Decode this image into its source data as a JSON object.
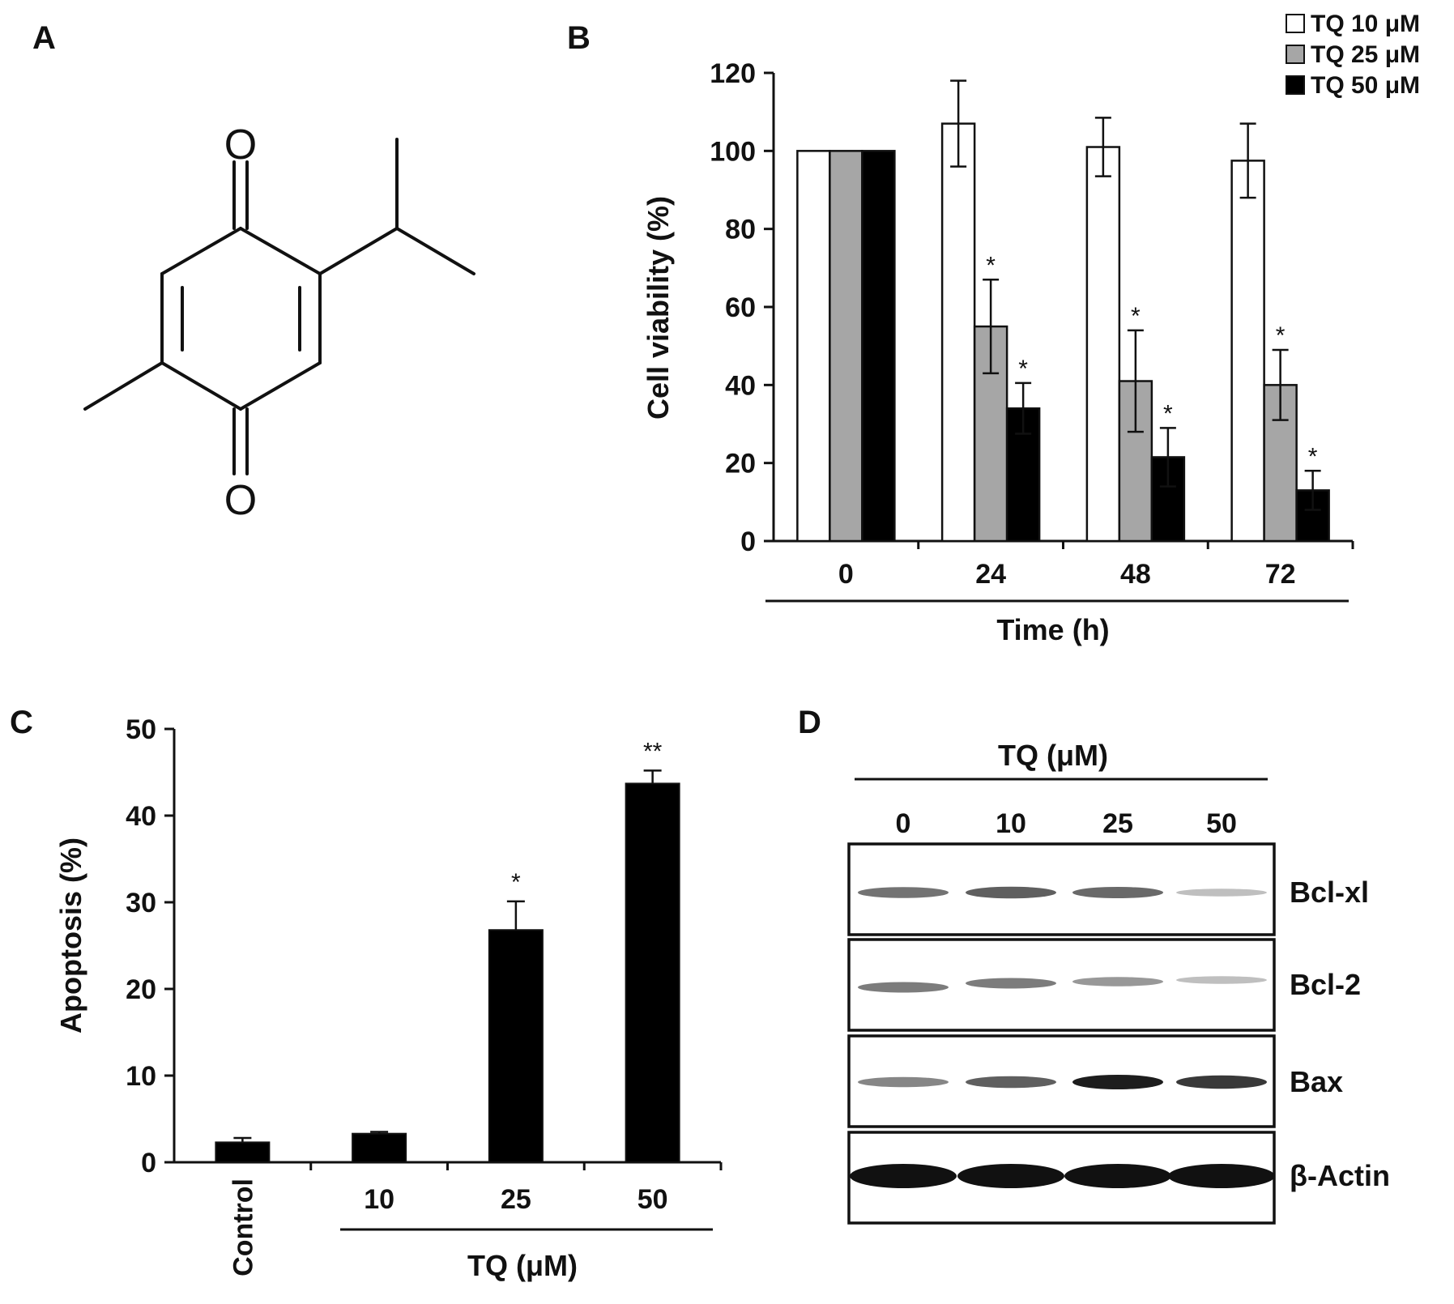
{
  "panels": [
    "A",
    "B",
    "C",
    "D"
  ],
  "molecule": {
    "atom_top": "O",
    "atom_bottom": "O"
  },
  "chart_data": [
    {
      "panel": "B",
      "type": "bar",
      "categories": [
        "0",
        "24",
        "48",
        "72"
      ],
      "series": [
        {
          "name": "TQ 10 μM",
          "values": [
            100,
            107,
            101,
            97.5
          ],
          "errors": [
            0,
            11,
            7.5,
            9.5
          ],
          "marks": [
            "",
            "",
            "",
            ""
          ],
          "color": "#ffffff"
        },
        {
          "name": "TQ 25 μM",
          "values": [
            100,
            55,
            41,
            40
          ],
          "errors": [
            0,
            12,
            13,
            9
          ],
          "marks": [
            "",
            "*",
            "*",
            "*"
          ],
          "color": "#a6a6a6"
        },
        {
          "name": "TQ 50 μM",
          "values": [
            100,
            34,
            21.5,
            13
          ],
          "errors": [
            0,
            6.5,
            7.5,
            5
          ],
          "marks": [
            "",
            "*",
            "*",
            "*"
          ],
          "color": "#000000"
        }
      ],
      "ylabel": "Cell viability (%)",
      "xlabel": "Time (h)",
      "ylim": [
        0,
        120
      ],
      "yticks": [
        "0",
        "20",
        "40",
        "60",
        "80",
        "100",
        "120"
      ],
      "legend": "top-right"
    },
    {
      "panel": "C",
      "type": "bar",
      "categories": [
        "Control",
        "10",
        "25",
        "50"
      ],
      "values": [
        2.3,
        3.3,
        26.8,
        43.7
      ],
      "errors": [
        0.5,
        0.2,
        3.3,
        1.5
      ],
      "marks": [
        "",
        "",
        "*",
        "**"
      ],
      "ylabel": "Apoptosis (%)",
      "xlabel": "TQ (μM)",
      "ylim": [
        0,
        50
      ],
      "yticks": [
        "0",
        "10",
        "20",
        "30",
        "40",
        "50"
      ],
      "color": "#000000"
    }
  ],
  "western_blot": {
    "header": "TQ (μM)",
    "lanes": [
      "0",
      "10",
      "25",
      "50"
    ],
    "rows": [
      {
        "label": "Bcl-xl",
        "intensity": [
          0.55,
          0.65,
          0.6,
          0.15
        ]
      },
      {
        "label": "Bcl-2",
        "intensity": [
          0.5,
          0.5,
          0.35,
          0.15
        ]
      },
      {
        "label": "Bax",
        "intensity": [
          0.45,
          0.65,
          1.0,
          0.85
        ]
      },
      {
        "label": "β-Actin",
        "intensity": [
          1.0,
          1.0,
          1.0,
          1.0
        ]
      }
    ]
  }
}
